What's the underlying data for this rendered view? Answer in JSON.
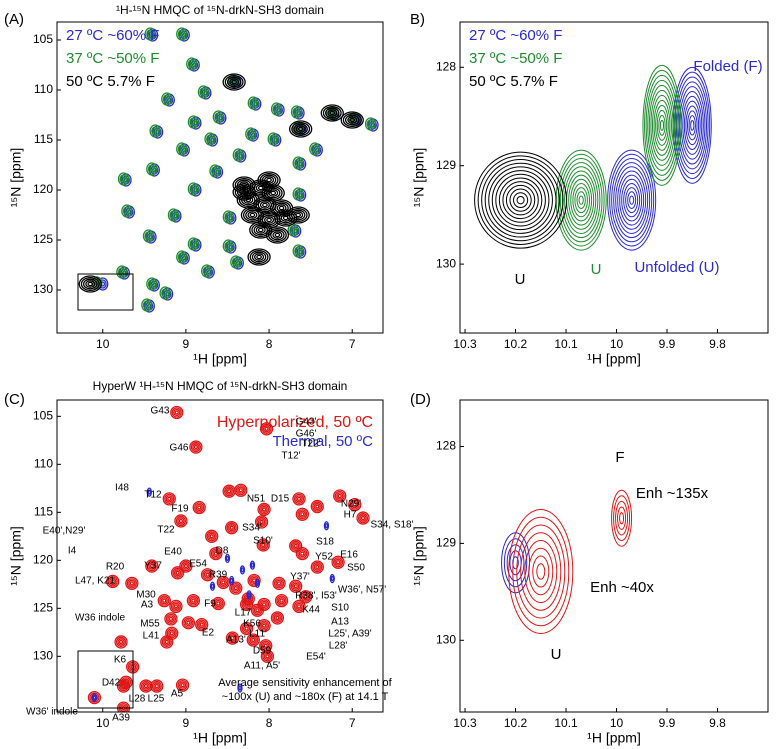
{
  "chart_data": [
    {
      "type": "contour",
      "panel_label": "(A)",
      "title": "¹H-¹⁵N HMQC of ¹⁵N-drkN-SH3 domain",
      "x_label": "¹H [ppm]",
      "y_label": "¹⁵N [ppm]",
      "xlim": [
        10.55,
        6.63
      ],
      "ylim": [
        103.2,
        134.3
      ],
      "xticks": [
        10,
        9,
        8,
        7
      ],
      "yticks": [
        105,
        110,
        115,
        120,
        125,
        130
      ],
      "legend": "upper left",
      "series": [
        {
          "name": "27 ºC ~60% F",
          "color": "#2a2ad0",
          "x": [
            9.4,
            9.02,
            8.9,
            8.4,
            8.76,
            9.2,
            8.16,
            7.88,
            7.64,
            7.62,
            7.22,
            6.95,
            6.75,
            8.88,
            8.58,
            9.34,
            8.68,
            8.19,
            7.92,
            9.02,
            8.34,
            7.42,
            9.38,
            8.62,
            7.62,
            9.72,
            8.88,
            7.62,
            9.68,
            9.12,
            8.46,
            7.68,
            9.42,
            8.88,
            8.46,
            7.62,
            9.74,
            9.02,
            8.72,
            8.37,
            9.44,
            9.38,
            9.22,
            10.0
          ],
          "y": [
            104.5,
            104.5,
            107.5,
            109.2,
            110.3,
            111.0,
            111.4,
            112.0,
            112.3,
            113.9,
            112.4,
            113.0,
            113.5,
            113.3,
            112.8,
            114.2,
            115.0,
            114.5,
            115.0,
            116.0,
            116.6,
            116.0,
            118.0,
            118.2,
            117.4,
            119.0,
            120.0,
            120.5,
            122.2,
            122.6,
            122.8,
            124.1,
            124.7,
            125.5,
            125.7,
            126.2,
            128.3,
            126.8,
            128.2,
            127.3,
            131.6,
            129.5,
            130.4,
            129.4
          ]
        },
        {
          "name": "37 ºC ~50% F",
          "color": "#1e8c2e",
          "x": [
            9.43,
            9.05,
            8.93,
            8.43,
            8.79,
            9.23,
            8.19,
            7.91,
            7.67,
            7.65,
            7.25,
            6.98,
            6.78,
            8.91,
            8.61,
            9.37,
            8.71,
            8.22,
            7.95,
            9.05,
            8.37,
            7.45,
            9.41,
            8.65,
            7.65,
            9.75,
            8.91,
            7.65,
            9.71,
            9.15,
            8.49,
            7.71,
            9.45,
            8.91,
            8.49,
            7.65,
            9.77,
            9.05,
            8.75,
            8.4,
            9.47,
            9.41,
            9.25,
            10.07
          ],
          "y": [
            104.4,
            104.4,
            107.4,
            109.1,
            110.2,
            110.9,
            111.3,
            111.9,
            112.2,
            113.8,
            112.3,
            112.9,
            113.4,
            113.2,
            112.7,
            114.1,
            114.9,
            114.4,
            114.9,
            115.9,
            116.5,
            115.9,
            117.9,
            118.1,
            117.3,
            118.9,
            119.9,
            120.4,
            122.1,
            122.5,
            122.7,
            124.0,
            124.6,
            125.4,
            125.6,
            126.1,
            128.2,
            126.7,
            128.1,
            127.2,
            131.5,
            129.4,
            130.3,
            129.3
          ]
        },
        {
          "name": "50 ºC 5.7% F",
          "color": "#000000",
          "x": [
            8.42,
            7.24,
            7.0,
            8.3,
            8.1,
            7.95,
            8.25,
            8.05,
            7.85,
            8.2,
            8.0,
            7.8,
            7.65,
            8.1,
            7.9,
            8.12,
            8.3,
            8.0,
            10.15,
            7.62
          ],
          "y": [
            109.2,
            112.3,
            113.0,
            119.5,
            119.8,
            120.3,
            121.0,
            121.5,
            121.8,
            122.5,
            123.0,
            122.8,
            122.5,
            124.0,
            124.5,
            126.7,
            120.2,
            119.0,
            129.4,
            113.9
          ]
        }
      ]
    },
    {
      "type": "contour",
      "panel_label": "B)",
      "x_label": "¹H [ppm]",
      "y_label": "¹⁵N [ppm]",
      "xlim": [
        10.31,
        9.7
      ],
      "ylim": [
        127.54,
        130.7
      ],
      "xticks": [
        10.3,
        10.2,
        10.1,
        10,
        9.9,
        9.8
      ],
      "yticks": [
        128,
        129,
        130
      ],
      "legend": "upper left",
      "series": [
        {
          "name": "27 ºC ~60% F",
          "color": "#2a2ad0",
          "x": [
            9.97,
            9.85
          ],
          "y": [
            129.35,
            128.59
          ]
        },
        {
          "name": "37 ºC ~50% F",
          "color": "#1e8c2e",
          "x": [
            10.07,
            9.91
          ],
          "y": [
            129.35,
            128.59
          ]
        },
        {
          "name": "50 ºC 5.7% F",
          "color": "#000000",
          "x": [
            10.19
          ],
          "y": [
            129.35
          ]
        }
      ],
      "annotations": [
        {
          "text": "U",
          "color": "#000000"
        },
        {
          "text": "U",
          "color": "#1e8c2e"
        },
        {
          "text": "Unfolded (U)",
          "color": "#2a2ad0"
        },
        {
          "text": "Folded (F)",
          "color": "#2a2ad0"
        }
      ]
    },
    {
      "type": "contour",
      "panel_label": "(C)",
      "title": "HyperW ¹H-¹⁵N HMQC of ¹⁵N-drkN-SH3 domain",
      "x_label": "¹H [ppm]",
      "y_label": "¹⁵N [ppm]",
      "xlim": [
        10.55,
        6.63
      ],
      "ylim": [
        103.3,
        135.8
      ],
      "xticks": [
        10,
        9,
        8,
        7
      ],
      "yticks": [
        105,
        110,
        115,
        120,
        125,
        130
      ],
      "legend": "upper right",
      "series": [
        {
          "name": "Hyperpolarized, 50 ºC",
          "color": "#e01414",
          "x": [
            9.11,
            8.88,
            8.03,
            9.2,
            8.84,
            8.48,
            8.34,
            8.09,
            8.06,
            7.64,
            7.6,
            7.42,
            7.15,
            6.97,
            6.87,
            9.06,
            8.69,
            8.45,
            8.07,
            7.68,
            7.6,
            7.42,
            7.17,
            8.64,
            9.0,
            9.41,
            9.1,
            9.65,
            9.88,
            8.74,
            8.55,
            8.4,
            8.18,
            7.88,
            7.68,
            7.56,
            9.26,
            9.12,
            8.91,
            8.61,
            8.27,
            8.06,
            7.85,
            7.64,
            9.18,
            8.97,
            8.27,
            8.06,
            7.9,
            9.17,
            8.81,
            8.19,
            8.04,
            8.02,
            9.78,
            10.1,
            9.23,
            9.64,
            9.75,
            9.48,
            9.35,
            9.04,
            9.75,
            9.72,
            8.44,
            8.25,
            8.14
          ],
          "y": [
            104.6,
            108.2,
            106.3,
            113.6,
            114.5,
            112.8,
            112.7,
            116.0,
            114.7,
            113.6,
            115.2,
            114.4,
            113.3,
            114.2,
            115.6,
            115.9,
            117.5,
            116.6,
            118.4,
            118.5,
            119.3,
            120.7,
            120.2,
            119.3,
            120.6,
            120.6,
            121.3,
            122.4,
            122.2,
            121.5,
            122.3,
            122.9,
            122.1,
            122.4,
            122.7,
            123.8,
            124.2,
            124.8,
            124.2,
            124.5,
            124.6,
            124.6,
            124.2,
            124.8,
            126.1,
            126.5,
            127.1,
            126.8,
            126.0,
            127.6,
            126.7,
            128.3,
            128.9,
            130.0,
            128.5,
            134.3,
            128.5,
            131.1,
            133.1,
            133.1,
            133.1,
            133.0,
            135.4,
            132.7,
            128.1,
            124.0,
            125.2
          ]
        },
        {
          "name": "Thermal, 50 ºC",
          "color": "#2a2ad0",
          "x": [
            9.44,
            7.31,
            7.24,
            8.24,
            8.14,
            8.45,
            8.32,
            8.68,
            8.5,
            8.2,
            8.35,
            10.1
          ],
          "y": [
            112.9,
            116.4,
            121.9,
            123.6,
            122.4,
            122.1,
            121.0,
            122.7,
            119.8,
            120.5,
            133.3,
            134.3
          ]
        }
      ],
      "peak_labels": [
        "G43",
        "G46",
        "G43'",
        "G46'",
        "T22'",
        "T12'",
        "I48",
        "T12",
        "N51",
        "D15",
        "N29'",
        "H7",
        "F19",
        "S34'",
        "T22",
        "S34, S18'",
        "E40',N29'",
        "S10'",
        "D8",
        "S18",
        "E16",
        "Y52",
        "I4",
        "E40",
        "Y37",
        "E54",
        "S50",
        "R39",
        "R20",
        "Y37'",
        "L47, K21",
        "W36', N57'",
        "M30",
        "R38', I53'",
        "F9",
        "A3",
        "K44",
        "S10",
        "L17",
        "A13",
        "K56",
        "L25', A39'",
        "M55",
        "E2",
        "A13'",
        "L11'",
        "L28'",
        "L41",
        "D59",
        "E54'",
        "K6",
        "D42",
        "L28",
        "L25",
        "A5",
        "A11, A5'",
        "A39",
        "W36 indole",
        "W36' indole"
      ],
      "note": [
        "Average sensitivity enhancement of",
        "~100x (U) and ~180x (F) at 14.1 T"
      ]
    },
    {
      "type": "contour",
      "panel_label": "(D)",
      "x_label": "¹H [ppm]",
      "y_label": "¹⁵N [ppm]",
      "xlim": [
        10.31,
        9.7
      ],
      "ylim": [
        127.52,
        130.74
      ],
      "xticks": [
        10.3,
        10.2,
        10.1,
        10,
        9.9,
        9.8
      ],
      "yticks": [
        128,
        129,
        130
      ],
      "series": [
        {
          "color": "#2a2ad0",
          "x": [
            10.2
          ],
          "y": [
            129.2
          ]
        },
        {
          "color": "#e01414",
          "x": [
            10.15,
            9.99
          ],
          "y": [
            129.29,
            128.74
          ]
        }
      ],
      "annotations": [
        {
          "text": "F",
          "color": "#000000"
        },
        {
          "text": "Enh ~135x",
          "color": "#000000"
        },
        {
          "text": "Enh ~40x",
          "color": "#000000"
        },
        {
          "text": "U",
          "color": "#000000"
        }
      ]
    }
  ]
}
